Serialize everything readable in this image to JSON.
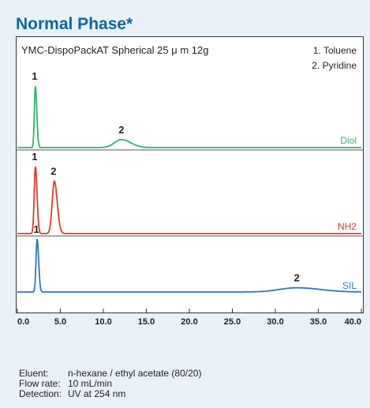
{
  "heading": "Normal Phase*",
  "chart_data": {
    "type": "line",
    "title": "YMC-DispoPackAT Spherical 25 μ m 12g",
    "legend": [
      "1. Toluene",
      "2. Pyridine"
    ],
    "legend_placement": "top-right",
    "xlim": [
      0,
      40
    ],
    "xticks": [
      "0.0",
      "5.0",
      "10.0",
      "15.0",
      "20.0",
      "25.0",
      "30.0",
      "35.0",
      "40.0"
    ],
    "grid": false,
    "panels": [
      {
        "name": "Diol",
        "color": "#2fb36c",
        "peaks": [
          {
            "label": "1",
            "x": 2.1,
            "height": 1.0,
            "width": 0.12
          },
          {
            "label": "2",
            "x": 12.1,
            "height": 0.13,
            "width": 0.8
          }
        ]
      },
      {
        "name": "NH2",
        "color": "#e8382a",
        "peaks": [
          {
            "label": "1",
            "x": 2.1,
            "height": 1.0,
            "width": 0.14
          },
          {
            "label": "2",
            "x": 4.3,
            "height": 0.78,
            "width": 0.25
          }
        ]
      },
      {
        "name": "SIL",
        "color": "#2f75c6",
        "peaks": [
          {
            "label": "1",
            "x": 2.3,
            "height": 1.0,
            "width": 0.13
          },
          {
            "label": "2",
            "x": 32.5,
            "height": 0.08,
            "width": 2.0
          }
        ]
      }
    ]
  },
  "conditions": [
    {
      "label": "Eluent:",
      "value": "n-hexane / ethyl acetate (80/20)"
    },
    {
      "label": "Flow rate:",
      "value": "10 mL/min"
    },
    {
      "label": "Detection:",
      "value": "UV at 254 nm"
    }
  ]
}
